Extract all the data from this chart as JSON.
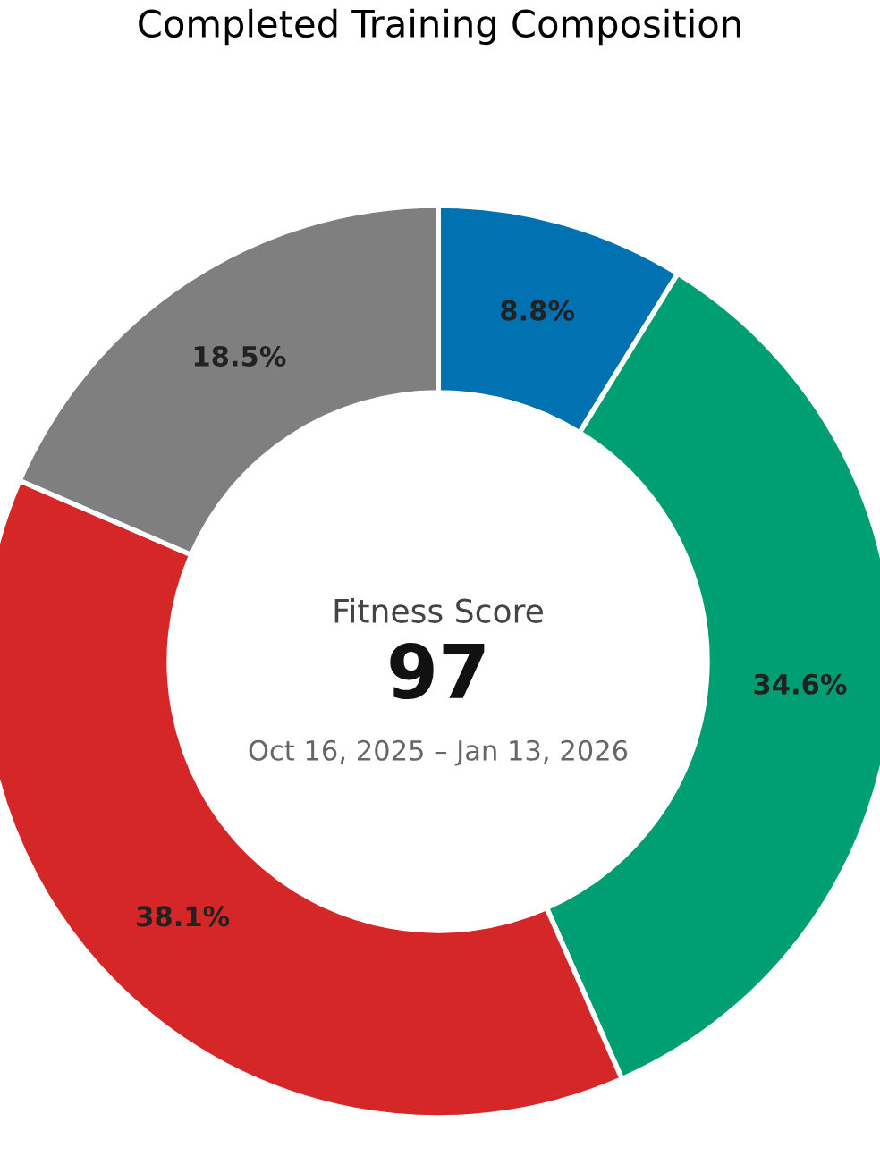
{
  "chart_data": {
    "type": "donut",
    "title": "Completed Training Composition",
    "categories": [
      null,
      null,
      null,
      null
    ],
    "values": [
      8.8,
      34.6,
      38.1,
      18.5
    ],
    "value_labels": [
      "8.8%",
      "34.6%",
      "38.1%",
      "18.5%"
    ],
    "colors": [
      "#0072b2",
      "#009e73",
      "#d62728",
      "#7f7f7f"
    ],
    "annotations": [
      "Fitness Score",
      "97",
      "Oct 16, 2025 – Jan 13, 2026"
    ]
  }
}
